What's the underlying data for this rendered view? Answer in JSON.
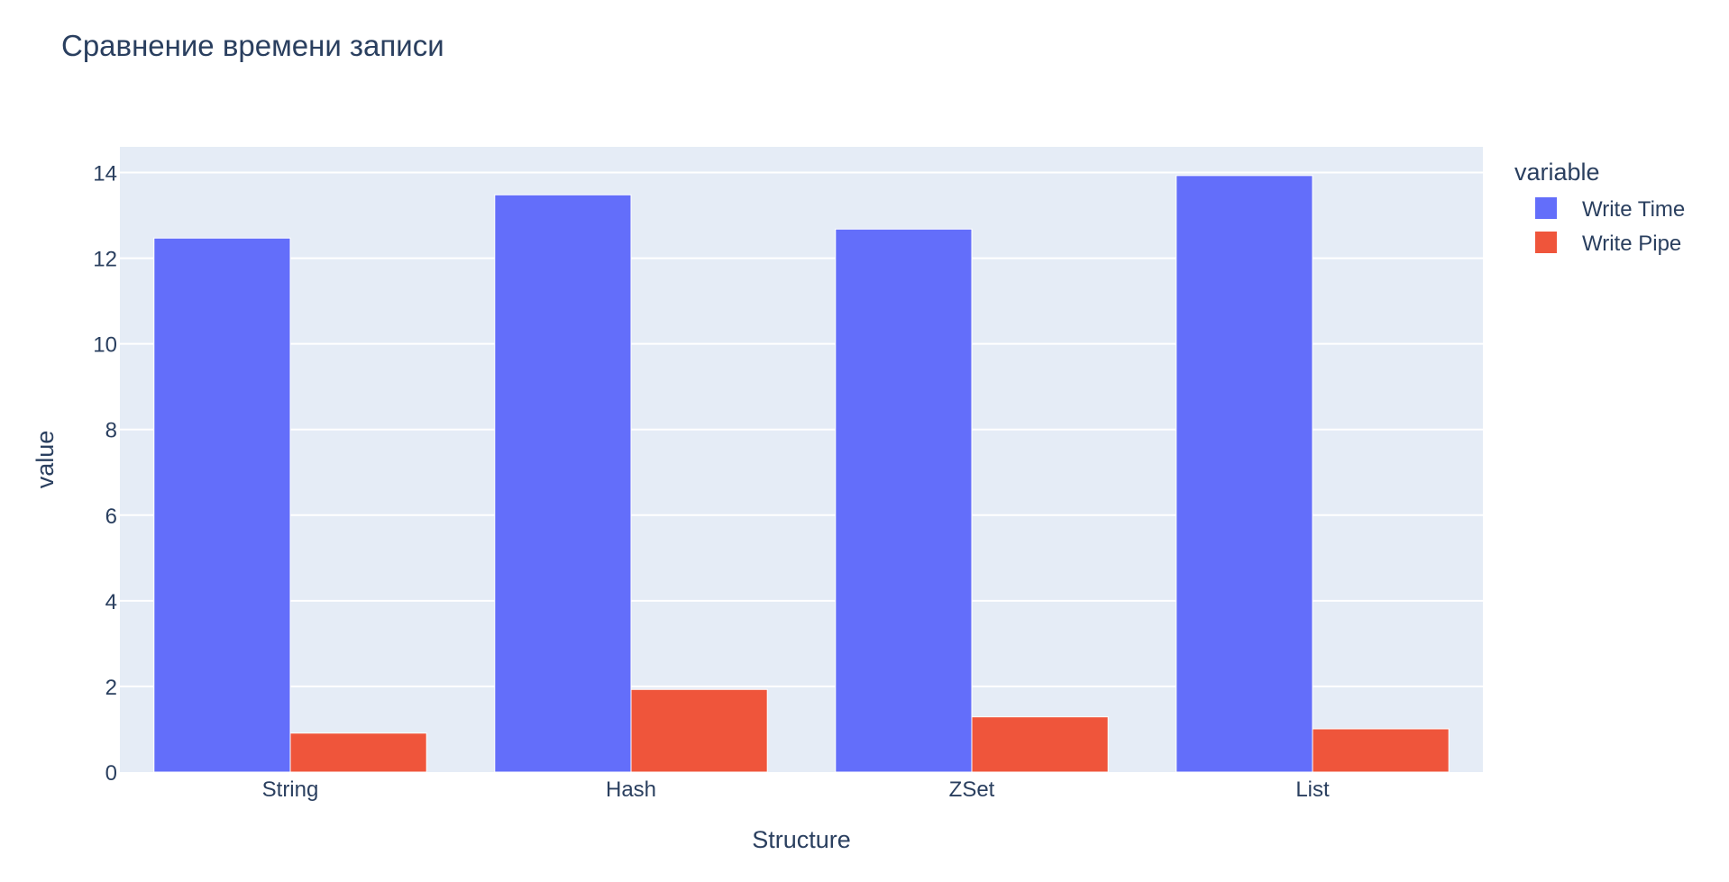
{
  "chart_data": {
    "type": "bar",
    "title": "Сравнение времени записи",
    "xlabel": "Structure",
    "ylabel": "value",
    "categories": [
      "String",
      "Hash",
      "ZSet",
      "List"
    ],
    "series": [
      {
        "name": "Write Time",
        "values": [
          12.47,
          13.48,
          12.68,
          13.93
        ]
      },
      {
        "name": "Write Pipe",
        "values": [
          0.91,
          1.93,
          1.29,
          1.01
        ]
      }
    ],
    "ylim": [
      0,
      14.6
    ],
    "yticks": [
      0,
      2,
      4,
      6,
      8,
      10,
      12,
      14
    ],
    "grid": true,
    "legend": {
      "title": "variable",
      "placement": "right"
    },
    "colors": {
      "Write Time": "#636efa",
      "Write Pipe": "#ef553b",
      "plot_background": "#e5ecf6",
      "gridline": "#ffffff",
      "text": "#2a3f5f"
    }
  }
}
